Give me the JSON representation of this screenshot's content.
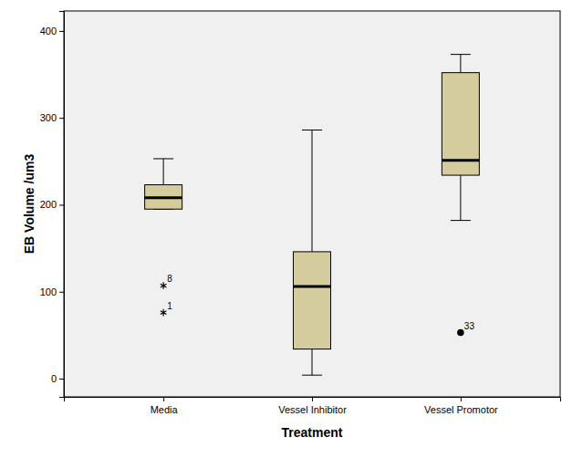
{
  "chart_data": {
    "type": "box",
    "x_label": "Treatment",
    "y_label": "EB Volume /um3",
    "categories": [
      "Media",
      "Vessel Inhibitor",
      "Vessel Promotor"
    ],
    "color": "#d4cc9c",
    "ylim": [
      -21,
      423
    ],
    "yticks": [
      0,
      100,
      200,
      300,
      400
    ],
    "boxes": [
      {
        "whisker_low": 195,
        "q1": 195,
        "median": 208,
        "q3": 223,
        "whisker_high": 253,
        "outliers": [
          {
            "value": 107,
            "label": "8",
            "marker": "star"
          },
          {
            "value": 76,
            "label": "1",
            "marker": "star"
          }
        ]
      },
      {
        "whisker_low": 4,
        "q1": 34,
        "median": 106,
        "q3": 146,
        "whisker_high": 286,
        "outliers": []
      },
      {
        "whisker_low": 182,
        "q1": 234,
        "median": 251,
        "q3": 352,
        "whisker_high": 373,
        "outliers": [
          {
            "value": 53,
            "label": "33",
            "marker": "circle"
          }
        ]
      }
    ]
  }
}
